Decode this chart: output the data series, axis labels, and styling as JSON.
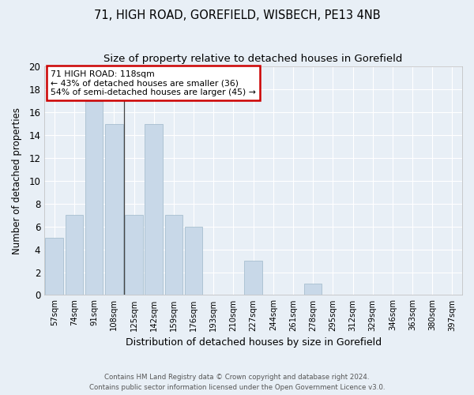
{
  "title": "71, HIGH ROAD, GOREFIELD, WISBECH, PE13 4NB",
  "subtitle": "Size of property relative to detached houses in Gorefield",
  "xlabel": "Distribution of detached houses by size in Gorefield",
  "ylabel": "Number of detached properties",
  "categories": [
    "57sqm",
    "74sqm",
    "91sqm",
    "108sqm",
    "125sqm",
    "142sqm",
    "159sqm",
    "176sqm",
    "193sqm",
    "210sqm",
    "227sqm",
    "244sqm",
    "261sqm",
    "278sqm",
    "295sqm",
    "312sqm",
    "329sqm",
    "346sqm",
    "363sqm",
    "380sqm",
    "397sqm"
  ],
  "values": [
    5,
    7,
    17,
    15,
    7,
    15,
    7,
    6,
    0,
    0,
    3,
    0,
    0,
    1,
    0,
    0,
    0,
    0,
    0,
    0,
    0
  ],
  "bar_color": "#c8d8e8",
  "bar_edge_color": "#a8bfcf",
  "annotation_line": "71 HIGH ROAD: 118sqm",
  "annotation_line2": "← 43% of detached houses are smaller (36)",
  "annotation_line3": "54% of semi-detached houses are larger (45) →",
  "annotation_box_color": "#ffffff",
  "annotation_box_edge_color": "#cc0000",
  "vline_x": 3.5,
  "ylim": [
    0,
    20
  ],
  "yticks": [
    0,
    2,
    4,
    6,
    8,
    10,
    12,
    14,
    16,
    18,
    20
  ],
  "footer1": "Contains HM Land Registry data © Crown copyright and database right 2024.",
  "footer2": "Contains public sector information licensed under the Open Government Licence v3.0.",
  "bg_color": "#e8eff6",
  "plot_bg_color": "#e8eff6",
  "title_fontsize": 10.5,
  "subtitle_fontsize": 9.5,
  "ylabel_text": "Number of detached properties"
}
